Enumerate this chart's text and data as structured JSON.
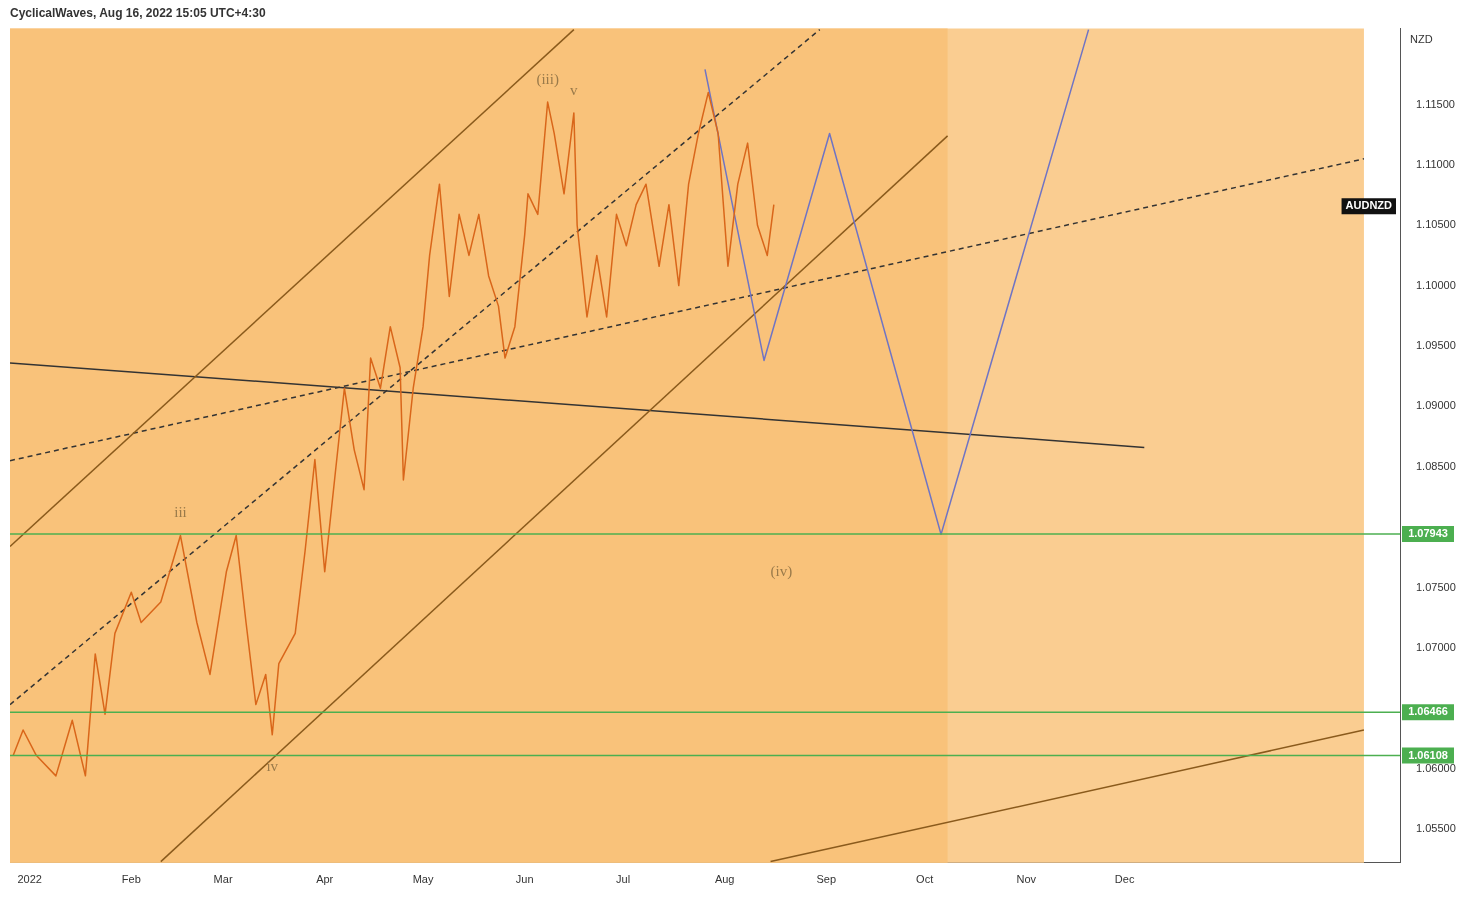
{
  "chart_data": {
    "type": "line",
    "title": "CyclicalWaves, Aug 16, 2022 15:05 UTC+4:30",
    "ylabel": "NZD",
    "xlim": [
      "2021-12-26",
      "2023-02-23"
    ],
    "ylim": [
      1.0522,
      1.1213
    ],
    "xticks": [
      {
        "value": "2022-01-01",
        "label": "2022"
      },
      {
        "value": "2022-02-01",
        "label": "Feb"
      },
      {
        "value": "2022-03-01",
        "label": "Mar"
      },
      {
        "value": "2022-04-01",
        "label": "Apr"
      },
      {
        "value": "2022-05-01",
        "label": "May"
      },
      {
        "value": "2022-06-01",
        "label": "Jun"
      },
      {
        "value": "2022-07-01",
        "label": "Jul"
      },
      {
        "value": "2022-08-01",
        "label": "Aug"
      },
      {
        "value": "2022-09-01",
        "label": "Sep"
      },
      {
        "value": "2022-10-01",
        "label": "Oct"
      },
      {
        "value": "2022-11-01",
        "label": "Nov"
      },
      {
        "value": "2022-12-01",
        "label": "Dec"
      }
    ],
    "yticks": [
      {
        "value": 1.055,
        "label": "1.05500"
      },
      {
        "value": 1.06,
        "label": "1.06000"
      },
      {
        "value": 1.07,
        "label": "1.07000"
      },
      {
        "value": 1.075,
        "label": "1.07500"
      },
      {
        "value": 1.085,
        "label": "1.08500"
      },
      {
        "value": 1.09,
        "label": "1.09000"
      },
      {
        "value": 1.095,
        "label": "1.09500"
      },
      {
        "value": 1.1,
        "label": "1.10000"
      },
      {
        "value": 1.105,
        "label": "1.10500"
      },
      {
        "value": 1.11,
        "label": "1.11000"
      },
      {
        "value": 1.115,
        "label": "1.11500"
      }
    ],
    "grid": false,
    "legend": false,
    "marker": "none",
    "bands": [
      {
        "axis": "x",
        "from": "2021-12-26",
        "to": "2023-02-12",
        "color": "#facd91"
      },
      {
        "axis": "x",
        "from": "2021-12-26",
        "to": "2022-10-08",
        "color": "#f9c27a"
      }
    ],
    "ref_lines": [
      {
        "axis": "y",
        "value": 1.07943,
        "label": "1.07943",
        "color": "#4caf50"
      },
      {
        "axis": "y",
        "value": 1.06466,
        "label": "1.06466",
        "color": "#4caf50"
      },
      {
        "axis": "y",
        "value": 1.06108,
        "label": "1.06108",
        "color": "#4caf50"
      }
    ],
    "annotations": [
      {
        "text": "(iii)",
        "x": "2022-06-08",
        "y": 1.1152
      },
      {
        "text": "v",
        "x": "2022-06-16",
        "y": 1.1143
      },
      {
        "text": "iii",
        "x": "2022-02-16",
        "y": 1.0793
      },
      {
        "text": "iv",
        "x": "2022-03-16",
        "y": 1.0628
      },
      "(iv)",
      "AUDNZD"
    ],
    "series": [
      {
        "color": "#d9661a",
        "x": [
          "2021-12-27",
          "2021-12-30",
          "2022-01-03",
          "2022-01-09",
          "2022-01-14",
          "2022-01-18",
          "2022-01-21",
          "2022-01-24",
          "2022-01-27",
          "2022-02-01",
          "2022-02-04",
          "2022-02-10",
          "2022-02-16",
          "2022-02-21",
          "2022-02-25",
          "2022-03-02",
          "2022-03-05",
          "2022-03-08",
          "2022-03-11",
          "2022-03-14",
          "2022-03-16",
          "2022-03-18",
          "2022-03-23",
          "2022-03-26",
          "2022-03-29",
          "2022-04-01",
          "2022-04-04",
          "2022-04-07",
          "2022-04-10",
          "2022-04-13",
          "2022-04-15",
          "2022-04-18",
          "2022-04-21",
          "2022-04-24",
          "2022-04-25",
          "2022-04-28",
          "2022-05-01",
          "2022-05-03",
          "2022-05-06",
          "2022-05-09",
          "2022-05-12",
          "2022-05-15",
          "2022-05-18",
          "2022-05-21",
          "2022-05-24",
          "2022-05-26",
          "2022-05-29",
          "2022-06-01",
          "2022-06-02",
          "2022-06-05",
          "2022-06-08",
          "2022-06-10",
          "2022-06-13",
          "2022-06-16",
          "2022-06-17",
          "2022-06-20",
          "2022-06-23",
          "2022-06-26",
          "2022-06-29",
          "2022-07-02",
          "2022-07-05",
          "2022-07-08",
          "2022-07-12",
          "2022-07-15",
          "2022-07-18",
          "2022-07-21",
          "2022-07-24",
          "2022-07-27",
          "2022-07-30",
          "2022-08-02",
          "2022-08-05",
          "2022-08-08",
          "2022-08-11",
          "2022-08-14",
          "2022-08-16"
        ],
        "values": [
          1.0611,
          1.0632,
          1.0611,
          1.0594,
          1.064,
          1.0594,
          1.0695,
          1.0645,
          1.0712,
          1.0746,
          1.0721,
          1.0738,
          1.0793,
          1.0721,
          1.0678,
          1.0763,
          1.0793,
          1.0721,
          1.0653,
          1.0678,
          1.0628,
          1.0687,
          1.0712,
          1.078,
          1.0856,
          1.0763,
          1.0839,
          1.0915,
          1.0864,
          1.0831,
          1.094,
          1.0915,
          1.0966,
          1.0932,
          1.0839,
          1.0915,
          1.0966,
          1.1025,
          1.1084,
          1.0991,
          1.1059,
          1.1025,
          1.1059,
          1.1008,
          1.0983,
          1.094,
          1.0966,
          1.1042,
          1.1076,
          1.1059,
          1.1152,
          1.1126,
          1.1076,
          1.1143,
          1.105,
          1.0974,
          1.1025,
          1.0974,
          1.1059,
          1.1033,
          1.1067,
          1.1084,
          1.1016,
          1.1067,
          1.1,
          1.1084,
          1.1126,
          1.116,
          1.1126,
          1.1016,
          1.1084,
          1.1118,
          1.105,
          1.1025,
          1.1067
        ]
      },
      {
        "color": "#6f74c4",
        "x": [
          "2022-07-26",
          "2022-08-13",
          "2022-09-02",
          "2022-10-06",
          "2022-11-20"
        ],
        "values": [
          1.1179,
          1.0938,
          1.1126,
          1.0794,
          1.1212
        ]
      },
      {
        "color": "#8a5a1c",
        "x": [
          "2021-12-26",
          "2022-06-16"
        ],
        "values": [
          1.0784,
          1.1212
        ]
      },
      {
        "color": "#8a5a1c",
        "x": [
          "2022-02-10",
          "2022-10-08"
        ],
        "values": [
          1.0523,
          1.1124
        ]
      },
      {
        "color": "#333333",
        "line_style": "dashed",
        "x": [
          "2021-12-26",
          "2022-08-30"
        ],
        "values": [
          1.0653,
          1.1212
        ]
      },
      {
        "color": "#333333",
        "line_style": "dashed",
        "x": [
          "2021-12-26",
          "2023-02-12"
        ],
        "values": [
          1.0855,
          1.1105
        ]
      },
      {
        "color": "#333333",
        "x": [
          "2021-12-26",
          "2022-12-07"
        ],
        "values": [
          1.0936,
          1.0866
        ]
      },
      {
        "color": "#8a5a1c",
        "x": [
          "2022-08-15",
          "2023-02-12"
        ],
        "values": [
          1.0523,
          1.0632
        ]
      }
    ]
  }
}
